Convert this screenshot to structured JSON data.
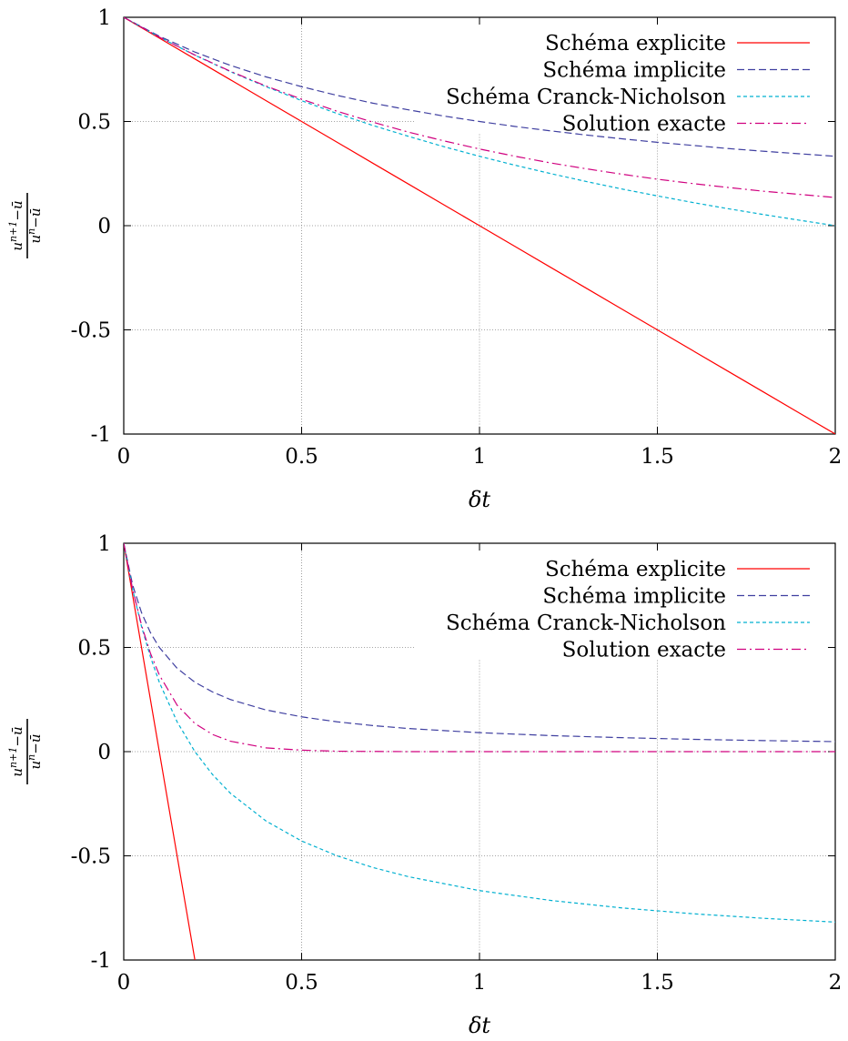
{
  "chart_data": [
    {
      "type": "line",
      "xlabel": "δt",
      "ylabel": {
        "numerator": "u",
        "numerator_sup": "n+1",
        "numerator_tail": "−ū",
        "denominator": "u",
        "denominator_sup": "n",
        "denominator_tail": "−ū"
      },
      "xlim": [
        0,
        2
      ],
      "ylim": [
        -1,
        1
      ],
      "x_ticks": [
        0,
        0.5,
        1,
        1.5,
        2
      ],
      "x_tick_labels": [
        "0",
        "0.5",
        "1",
        "1.5",
        "2"
      ],
      "y_ticks": [
        -1,
        -0.5,
        0,
        0.5,
        1
      ],
      "y_tick_labels": [
        "-1",
        "-0.5",
        "0",
        "0.5",
        "1"
      ],
      "grid": true,
      "legend_position": "top-right",
      "x": [
        0,
        0.1,
        0.2,
        0.3,
        0.4,
        0.5,
        0.6,
        0.7,
        0.8,
        0.9,
        1.0,
        1.1,
        1.2,
        1.3,
        1.4,
        1.5,
        1.6,
        1.7,
        1.8,
        1.9,
        2.0
      ],
      "series": [
        {
          "name": "Schéma explicite",
          "color": "#ff0000",
          "dash": "solid",
          "values": [
            1,
            0.9,
            0.8,
            0.7,
            0.6,
            0.5,
            0.4,
            0.3,
            0.2,
            0.1,
            0,
            -0.1,
            -0.2,
            -0.3,
            -0.4,
            -0.5,
            -0.6,
            -0.7,
            -0.8,
            -0.9,
            -1
          ]
        },
        {
          "name": "Schéma implicite",
          "color": "#3f3fa0",
          "dash": "dashed",
          "values": [
            1,
            0.909,
            0.833,
            0.769,
            0.714,
            0.667,
            0.625,
            0.588,
            0.556,
            0.526,
            0.5,
            0.476,
            0.455,
            0.435,
            0.417,
            0.4,
            0.385,
            0.37,
            0.357,
            0.345,
            0.333
          ]
        },
        {
          "name": "Schéma Cranck-Nicholson",
          "color": "#00b0d0",
          "dash": "dotted",
          "values": [
            1,
            0.905,
            0.818,
            0.739,
            0.667,
            0.6,
            0.538,
            0.481,
            0.429,
            0.379,
            0.333,
            0.29,
            0.25,
            0.212,
            0.176,
            0.143,
            0.111,
            0.081,
            0.053,
            0.026,
            0
          ]
        },
        {
          "name": "Solution exacte",
          "color": "#d0007f",
          "dash": "dashdot",
          "values": [
            1,
            0.905,
            0.819,
            0.741,
            0.67,
            0.607,
            0.549,
            0.497,
            0.449,
            0.407,
            0.368,
            0.333,
            0.301,
            0.273,
            0.247,
            0.223,
            0.202,
            0.183,
            0.165,
            0.15,
            0.135
          ]
        }
      ]
    },
    {
      "type": "line",
      "xlabel": "δt",
      "ylabel": {
        "numerator": "u",
        "numerator_sup": "n+1",
        "numerator_tail": "−ū",
        "denominator": "u",
        "denominator_sup": "n",
        "denominator_tail": "−ū"
      },
      "xlim": [
        0,
        2
      ],
      "ylim": [
        -1,
        1
      ],
      "x_ticks": [
        0,
        0.5,
        1,
        1.5,
        2
      ],
      "x_tick_labels": [
        "0",
        "0.5",
        "1",
        "1.5",
        "2"
      ],
      "y_ticks": [
        -1,
        -0.5,
        0,
        0.5,
        1
      ],
      "y_tick_labels": [
        "-1",
        "-0.5",
        "0",
        "0.5",
        "1"
      ],
      "grid": true,
      "legend_position": "top-right",
      "x": [
        0,
        0.025,
        0.05,
        0.075,
        0.1,
        0.15,
        0.2,
        0.25,
        0.3,
        0.4,
        0.5,
        0.6,
        0.7,
        0.8,
        1.0,
        1.2,
        1.4,
        1.6,
        1.8,
        2.0
      ],
      "series": [
        {
          "name": "Schéma explicite",
          "color": "#ff0000",
          "dash": "solid",
          "x": [
            0,
            0.2
          ],
          "values": [
            1,
            -1
          ]
        },
        {
          "name": "Schéma implicite",
          "color": "#3f3fa0",
          "dash": "dashed",
          "values": [
            1,
            0.8,
            0.667,
            0.571,
            0.5,
            0.4,
            0.333,
            0.286,
            0.25,
            0.2,
            0.167,
            0.143,
            0.125,
            0.111,
            0.091,
            0.077,
            0.067,
            0.059,
            0.053,
            0.048
          ]
        },
        {
          "name": "Schéma Cranck-Nicholson",
          "color": "#00b0d0",
          "dash": "dotted",
          "values": [
            1,
            0.778,
            0.6,
            0.455,
            0.333,
            0.143,
            0,
            -0.111,
            -0.2,
            -0.333,
            -0.429,
            -0.5,
            -0.556,
            -0.6,
            -0.667,
            -0.714,
            -0.75,
            -0.778,
            -0.8,
            -0.818
          ]
        },
        {
          "name": "Solution exacte",
          "color": "#d0007f",
          "dash": "dashdot",
          "values": [
            1,
            0.779,
            0.607,
            0.472,
            0.368,
            0.223,
            0.135,
            0.082,
            0.05,
            0.018,
            0.007,
            0.002,
            0.001,
            0,
            0,
            0,
            0,
            0,
            0,
            0
          ]
        }
      ]
    }
  ]
}
